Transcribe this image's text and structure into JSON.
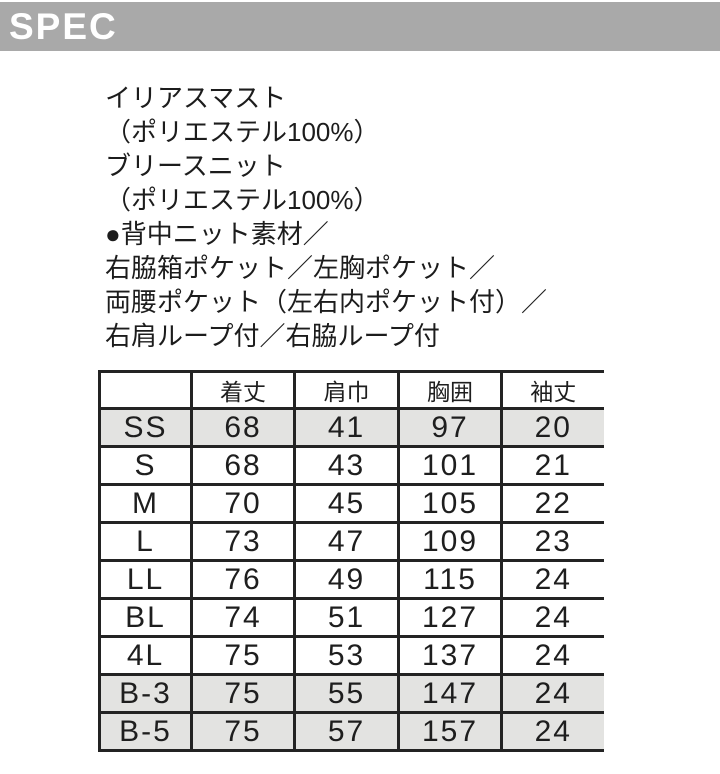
{
  "header": {
    "title": "SPEC",
    "bar_color": "#a9a9a9",
    "text_color": "#ffffff"
  },
  "description": {
    "lines": [
      "イリアスマスト",
      "（ポリエステル100%）",
      "ブリースニット",
      "（ポリエステル100%）",
      "●背中ニット素材／",
      "右脇箱ポケット／左胸ポケット／",
      "両腰ポケット（左右内ポケット付）／",
      "右肩ループ付／右脇ループ付"
    ]
  },
  "size_table": {
    "corner_label": "",
    "columns": [
      "着丈",
      "肩巾",
      "胸囲",
      "袖丈"
    ],
    "rows": [
      {
        "size": "SS",
        "values": [
          "68",
          "41",
          "97",
          "20"
        ],
        "shaded": true
      },
      {
        "size": "S",
        "values": [
          "68",
          "43",
          "101",
          "21"
        ],
        "shaded": false
      },
      {
        "size": "M",
        "values": [
          "70",
          "45",
          "105",
          "22"
        ],
        "shaded": false
      },
      {
        "size": "L",
        "values": [
          "73",
          "47",
          "109",
          "23"
        ],
        "shaded": false
      },
      {
        "size": "LL",
        "values": [
          "76",
          "49",
          "115",
          "24"
        ],
        "shaded": false
      },
      {
        "size": "BL",
        "values": [
          "74",
          "51",
          "127",
          "24"
        ],
        "shaded": false
      },
      {
        "size": "4L",
        "values": [
          "75",
          "53",
          "137",
          "24"
        ],
        "shaded": false
      },
      {
        "size": "B-3",
        "values": [
          "75",
          "55",
          "147",
          "24"
        ],
        "shaded": true
      },
      {
        "size": "B-5",
        "values": [
          "75",
          "57",
          "157",
          "24"
        ],
        "shaded": true
      }
    ],
    "shaded_row_color": "#e3e3e1",
    "border_color": "#232323"
  }
}
